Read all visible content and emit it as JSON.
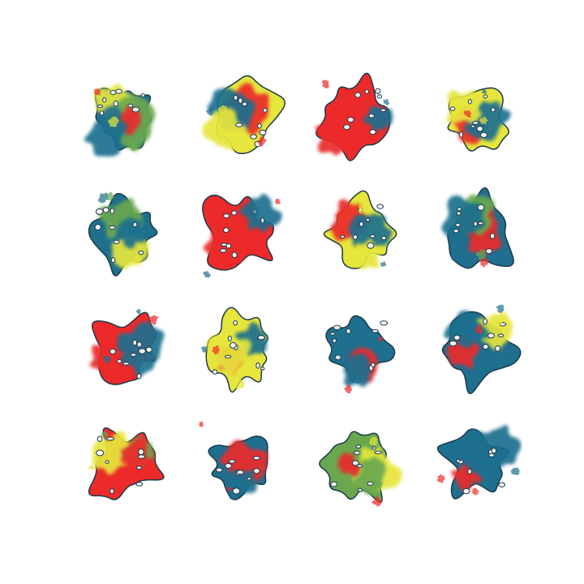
{
  "figure": {
    "rows": 4,
    "columns": 4,
    "background": "#ffffff",
    "palette": {
      "red": "#ec2a2a",
      "yellow": "#e6e63c",
      "blue": "#1f6f8f",
      "green": "#6aa84f",
      "hole": "#f4f4f4",
      "edge": "#1b3a4a"
    },
    "tiles": [
      {
        "id": "r1c1",
        "colors": [
          "yellow",
          "green",
          "red",
          "blue"
        ]
      },
      {
        "id": "r1c2",
        "colors": [
          "red",
          "blue",
          "yellow"
        ]
      },
      {
        "id": "r1c3",
        "colors": [
          "blue",
          "red"
        ]
      },
      {
        "id": "r1c4",
        "colors": [
          "red",
          "blue",
          "yellow"
        ]
      },
      {
        "id": "r2c1",
        "colors": [
          "yellow",
          "green",
          "blue"
        ]
      },
      {
        "id": "r2c2",
        "colors": [
          "blue",
          "red"
        ]
      },
      {
        "id": "r2c3",
        "colors": [
          "red",
          "blue",
          "yellow"
        ]
      },
      {
        "id": "r2c4",
        "colors": [
          "red",
          "green",
          "blue"
        ]
      },
      {
        "id": "r3c1",
        "colors": [
          "blue",
          "red"
        ]
      },
      {
        "id": "r3c2",
        "colors": [
          "red",
          "blue",
          "yellow"
        ]
      },
      {
        "id": "r3c3",
        "colors": [
          "red",
          "blue"
        ]
      },
      {
        "id": "r3c4",
        "colors": [
          "yellow",
          "red",
          "blue"
        ]
      },
      {
        "id": "r4c1",
        "colors": [
          "yellow",
          "green",
          "red"
        ]
      },
      {
        "id": "r4c2",
        "colors": [
          "red",
          "blue"
        ]
      },
      {
        "id": "r4c3",
        "colors": [
          "yellow",
          "red",
          "green"
        ]
      },
      {
        "id": "r4c4",
        "colors": [
          "red",
          "blue"
        ]
      }
    ]
  }
}
